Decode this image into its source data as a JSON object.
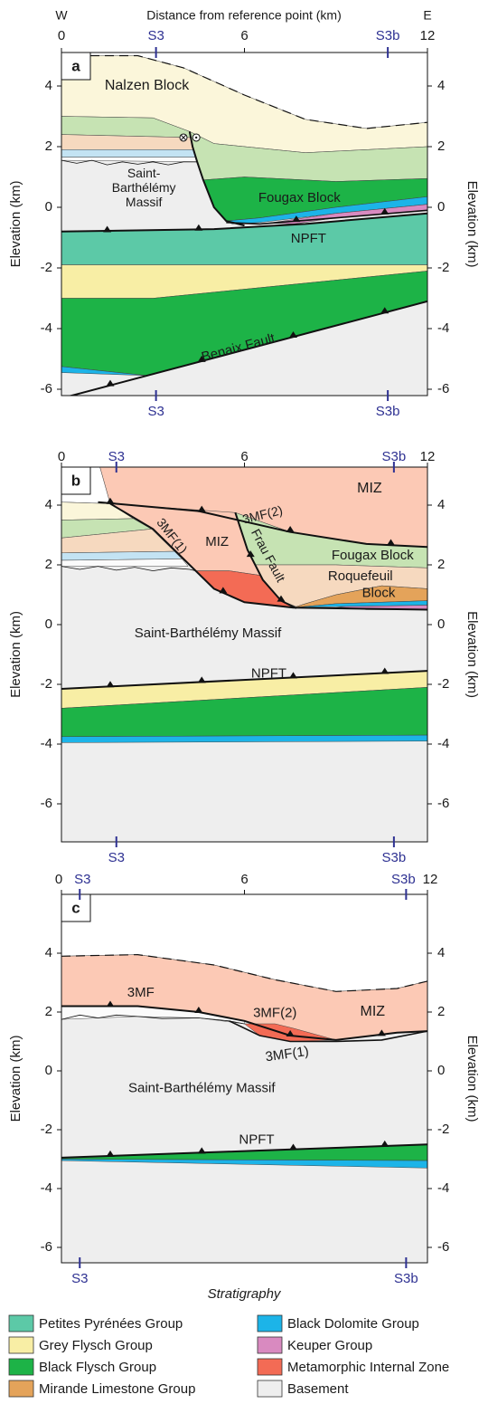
{
  "header": {
    "west": "W",
    "axis_title": "Distance from reference point (km)",
    "east": "E"
  },
  "x_ticks": [
    0,
    6,
    12
  ],
  "y_ticks": [
    4,
    2,
    0,
    -2,
    -4,
    -6
  ],
  "y_axis_title": "Elevation (km)",
  "sections": [
    "S3",
    "S3b"
  ],
  "panels": [
    {
      "letter": "a",
      "labels": [
        "Nalzen Block",
        "Saint-",
        "Barthélémy",
        "Massif",
        "Fougax Block",
        "NPFT",
        "Benaix Fault"
      ]
    },
    {
      "letter": "b",
      "labels": [
        "MIZ",
        "3MF(2)",
        "3MF(1)",
        "MIZ",
        "Frau Fault",
        "Fougax Block",
        "Roquefeuil",
        "Block",
        "Saint-Barthélémy Massif",
        "NPFT"
      ]
    },
    {
      "letter": "c",
      "labels": [
        "MIZ",
        "3MF",
        "3MF(2)",
        "3MF(1)",
        "Saint-Barthélémy Massif",
        "NPFT"
      ]
    }
  ],
  "footer": "Stratigraphy",
  "legend": [
    "Petites Pyrénées Group",
    "Grey Flysch Group",
    "Black Flysch Group",
    "Mirande Limestone Group",
    "Black Dolomite Group",
    "Keuper Group",
    "Metamorphic Internal Zone",
    "Basement"
  ]
}
